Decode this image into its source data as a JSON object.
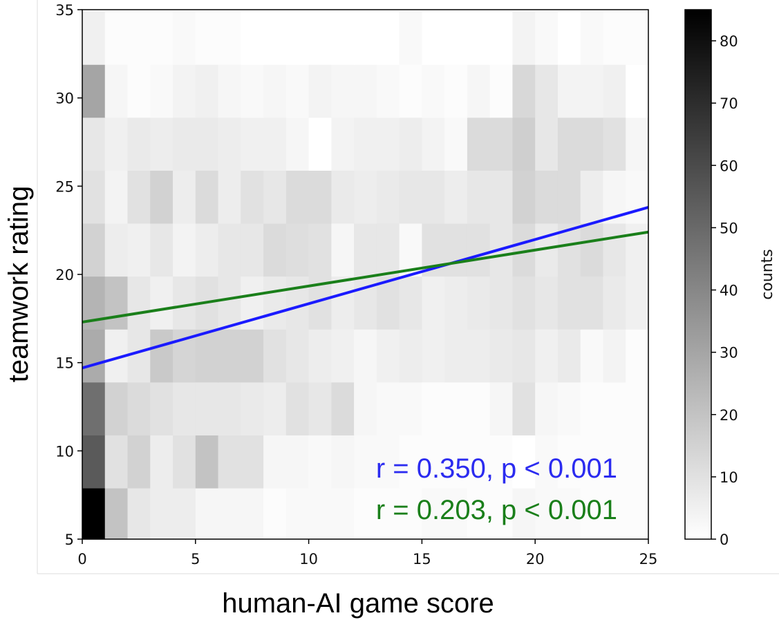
{
  "chart_data": {
    "type": "heatmap",
    "xlabel": "human-AI game score",
    "ylabel": "teamwork rating",
    "xlim": [
      0,
      25
    ],
    "ylim": [
      5,
      35
    ],
    "x_ticks": [
      "0",
      "5",
      "10",
      "15",
      "20",
      "25"
    ],
    "y_ticks": [
      "5",
      "10",
      "15",
      "20",
      "25",
      "30",
      "35"
    ],
    "x_bin_edges": [
      0,
      25
    ],
    "x_bin_count": 25,
    "y_bin_edges": [
      5,
      7.9,
      10.9,
      13.9,
      16.9,
      19.9,
      22.9,
      25.9,
      28.9,
      31.9,
      34.9
    ],
    "counts": [
      [
        85,
        20,
        8,
        6,
        6,
        3,
        3,
        3,
        1,
        2,
        2,
        2,
        1,
        1,
        1,
        2,
        2,
        1,
        1,
        3,
        2,
        2,
        1,
        1,
        1
      ],
      [
        55,
        10,
        15,
        6,
        10,
        20,
        10,
        10,
        3,
        3,
        2,
        3,
        2,
        2,
        1,
        1,
        1,
        1,
        1,
        0,
        2,
        1,
        1,
        1,
        1
      ],
      [
        48,
        15,
        12,
        10,
        8,
        8,
        8,
        7,
        6,
        10,
        8,
        12,
        3,
        2,
        2,
        1,
        1,
        1,
        3,
        10,
        3,
        2,
        1,
        1,
        1
      ],
      [
        28,
        5,
        8,
        18,
        14,
        15,
        15,
        15,
        10,
        8,
        6,
        5,
        3,
        5,
        6,
        5,
        6,
        6,
        7,
        8,
        5,
        7,
        2,
        4,
        1
      ],
      [
        25,
        20,
        8,
        5,
        8,
        10,
        8,
        5,
        7,
        8,
        10,
        6,
        8,
        10,
        8,
        5,
        6,
        7,
        8,
        10,
        8,
        10,
        10,
        7,
        5
      ],
      [
        15,
        6,
        5,
        8,
        4,
        6,
        8,
        8,
        12,
        11,
        10,
        3,
        8,
        8,
        2,
        10,
        10,
        10,
        8,
        12,
        7,
        10,
        12,
        8,
        5
      ],
      [
        10,
        4,
        10,
        15,
        6,
        12,
        6,
        10,
        8,
        12,
        12,
        7,
        6,
        7,
        8,
        8,
        6,
        8,
        8,
        15,
        12,
        12,
        6,
        3,
        2
      ],
      [
        8,
        5,
        7,
        6,
        7,
        7,
        6,
        5,
        5,
        3,
        0,
        4,
        5,
        5,
        6,
        4,
        2,
        12,
        12,
        16,
        8,
        12,
        12,
        10,
        3
      ],
      [
        30,
        3,
        1,
        2,
        4,
        5,
        3,
        2,
        3,
        2,
        4,
        3,
        3,
        2,
        1,
        2,
        1,
        3,
        1,
        13,
        8,
        4,
        4,
        5,
        0
      ],
      [
        5,
        1,
        1,
        1,
        2,
        1,
        1,
        0,
        0,
        0,
        0,
        0,
        0,
        0,
        2,
        0,
        0,
        0,
        0,
        4,
        2,
        0,
        2,
        1,
        1
      ]
    ],
    "fit_lines": [
      {
        "color": "#1a1aff",
        "x": [
          0,
          25
        ],
        "y": [
          14.7,
          23.8
        ]
      },
      {
        "color": "#1a7f1a",
        "x": [
          0,
          25
        ],
        "y": [
          17.3,
          22.4
        ]
      }
    ],
    "annotations": [
      {
        "text": "r = 0.350, p < 0.001",
        "color": "#2b2bf0"
      },
      {
        "text": "r = 0.203, p < 0.001",
        "color": "#1a7f1a"
      }
    ],
    "colorbar": {
      "label": "counts",
      "range": [
        0,
        85
      ],
      "ticks": [
        "0",
        "10",
        "20",
        "30",
        "40",
        "50",
        "60",
        "70",
        "80"
      ],
      "colormap": "gray_r"
    },
    "grid": false
  }
}
